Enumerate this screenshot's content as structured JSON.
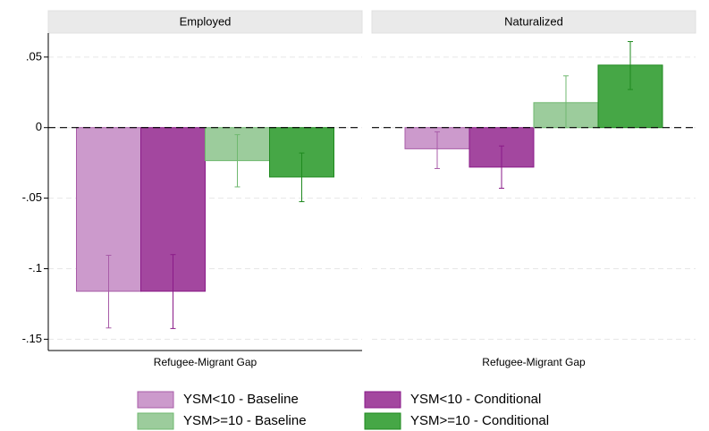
{
  "chart_data": {
    "type": "bar",
    "panels": [
      "Employed",
      "Naturalized"
    ],
    "xlabel": "Refugee-Migrant Gap",
    "ylim": [
      -0.158,
      0.067
    ],
    "yticks": [
      {
        "value": 0.05,
        "label": ".05"
      },
      0,
      {
        "value": -0.05,
        "label": "-.05"
      },
      {
        "value": -0.1,
        "label": "-.1"
      },
      {
        "value": -0.15,
        "label": "-.15"
      }
    ],
    "grid": true,
    "refline": 0,
    "series": [
      {
        "name": "YSM<10 - Baseline",
        "color": "#cc9acc",
        "edgecolor": "#a85ca8",
        "values": [
          -0.116,
          -0.015
        ],
        "ci_low": [
          -0.142,
          -0.029
        ],
        "ci_high": [
          -0.0905,
          -0.003
        ]
      },
      {
        "name": "YSM<10 - Conditional",
        "color": "#a3479f",
        "edgecolor": "#8a1a88",
        "values": [
          -0.116,
          -0.028
        ],
        "ci_low": [
          -0.1424,
          -0.043
        ],
        "ci_high": [
          -0.09,
          -0.013
        ]
      },
      {
        "name": "YSM>=10 - Baseline",
        "color": "#9ccc9c",
        "edgecolor": "#6fb86f",
        "values": [
          -0.0234,
          0.0177
        ],
        "ci_low": [
          -0.042,
          0
        ],
        "ci_high": [
          -0.005,
          0.0367
        ]
      },
      {
        "name": "YSM>=10 - Conditional",
        "color": "#46a746",
        "edgecolor": "#1f8a1f",
        "values": [
          -0.035,
          0.0443
        ],
        "ci_low": [
          -0.0525,
          0.027
        ],
        "ci_high": [
          -0.018,
          0.061
        ]
      }
    ]
  }
}
